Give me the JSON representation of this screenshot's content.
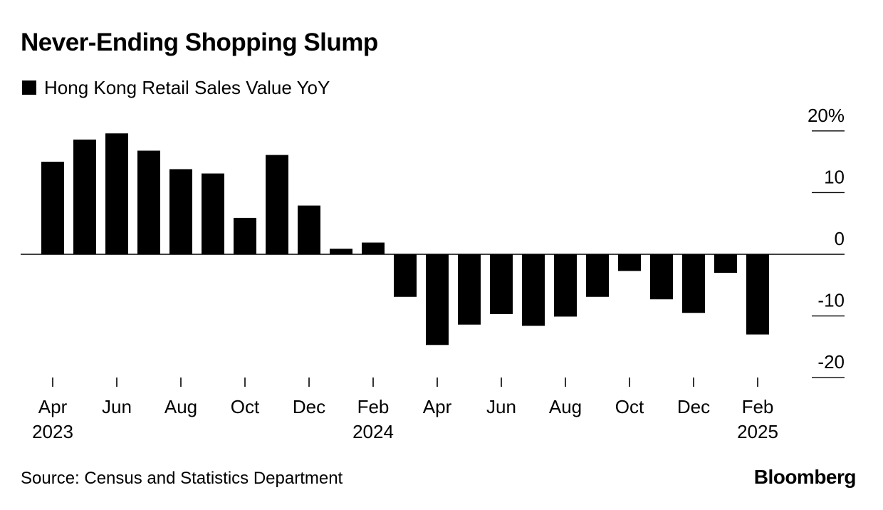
{
  "header": {
    "title": "Never-Ending Shopping Slump"
  },
  "legend": {
    "label": "Hong Kong Retail Sales Value YoY",
    "color": "#000000"
  },
  "footer": {
    "source": "Source: Census and Statistics Department",
    "brand": "Bloomberg"
  },
  "chart_data": {
    "type": "bar",
    "title": "Never-Ending Shopping Slump",
    "categories": [
      "Apr 2023",
      "May 2023",
      "Jun 2023",
      "Jul 2023",
      "Aug 2023",
      "Sep 2023",
      "Oct 2023",
      "Nov 2023",
      "Dec 2023",
      "Jan 2024",
      "Feb 2024",
      "Mar 2024",
      "Apr 2024",
      "May 2024",
      "Jun 2024",
      "Jul 2024",
      "Aug 2024",
      "Sep 2024",
      "Oct 2024",
      "Nov 2024",
      "Dec 2024",
      "Jan 2025",
      "Feb 2025"
    ],
    "series": [
      {
        "name": "Hong Kong Retail Sales Value YoY",
        "color": "#000000",
        "values": [
          15.0,
          18.6,
          19.6,
          16.8,
          13.8,
          13.1,
          5.9,
          16.1,
          7.9,
          0.9,
          1.9,
          -6.9,
          -14.7,
          -11.4,
          -9.7,
          -11.6,
          -10.1,
          -6.9,
          -2.7,
          -7.3,
          -9.5,
          -3.0,
          -13.0
        ]
      }
    ],
    "ylim": [
      -20,
      20
    ],
    "y_ticks": [
      20,
      10,
      0,
      -10,
      -20
    ],
    "y_tick_labels": [
      "20%",
      "10",
      "0",
      "-10",
      "-20"
    ],
    "x_ticks": [
      {
        "category": "Apr 2023",
        "label": "Apr",
        "year": "2023"
      },
      {
        "category": "Jun 2023",
        "label": "Jun",
        "year": ""
      },
      {
        "category": "Aug 2023",
        "label": "Aug",
        "year": ""
      },
      {
        "category": "Oct 2023",
        "label": "Oct",
        "year": ""
      },
      {
        "category": "Dec 2023",
        "label": "Dec",
        "year": ""
      },
      {
        "category": "Feb 2024",
        "label": "Feb",
        "year": "2024"
      },
      {
        "category": "Apr 2024",
        "label": "Apr",
        "year": ""
      },
      {
        "category": "Jun 2024",
        "label": "Jun",
        "year": ""
      },
      {
        "category": "Aug 2024",
        "label": "Aug",
        "year": ""
      },
      {
        "category": "Oct 2024",
        "label": "Oct",
        "year": ""
      },
      {
        "category": "Dec 2024",
        "label": "Dec",
        "year": ""
      },
      {
        "category": "Feb 2025",
        "label": "Feb",
        "year": "2025"
      }
    ],
    "y_axis_position": "right",
    "zero_line": true,
    "grid": false
  }
}
